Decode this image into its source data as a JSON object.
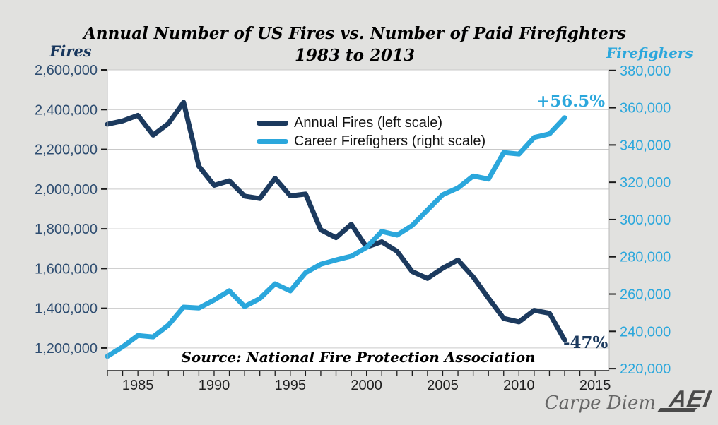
{
  "header": {
    "title_line1": "Annual Number of US Fires vs. Number of Paid Firefighters",
    "title_line2": "1983 to 2013"
  },
  "axes": {
    "left_label": "Fires",
    "right_label": "Firefighers"
  },
  "legend": {
    "items": [
      {
        "label": "Annual Fires (left scale)",
        "color": "#1c3a5e"
      },
      {
        "label": "Career Firefighers (right scale)",
        "color": "#2ba7dc"
      }
    ]
  },
  "annotations": {
    "firefighters_change": "+56.5%",
    "fires_change": "-47%"
  },
  "source": "Source: National Fire Protection Association",
  "branding": {
    "blog": "Carpe Diem",
    "org": "AEI"
  },
  "chart_data": {
    "type": "line",
    "title": "Annual Number of US Fires vs. Number of Paid Firefighters 1983 to 2013",
    "x": [
      1983,
      1984,
      1985,
      1986,
      1987,
      1988,
      1989,
      1990,
      1991,
      1992,
      1993,
      1994,
      1995,
      1996,
      1997,
      1998,
      1999,
      2000,
      2001,
      2002,
      2003,
      2004,
      2005,
      2006,
      2007,
      2008,
      2009,
      2010,
      2011,
      2012,
      2013
    ],
    "series": [
      {
        "name": "Annual Fires (left scale)",
        "axis": "left",
        "color": "#1c3a5e",
        "values": [
          2326500,
          2343000,
          2371000,
          2271500,
          2330000,
          2436500,
          2115000,
          2019000,
          2041500,
          1964500,
          1952500,
          2054500,
          1965500,
          1975000,
          1795000,
          1755500,
          1823000,
          1708000,
          1734500,
          1687500,
          1584500,
          1550500,
          1602000,
          1642500,
          1557500,
          1451500,
          1348500,
          1331500,
          1389500,
          1375000,
          1240000
        ]
      },
      {
        "name": "Career Firefighers (right scale)",
        "axis": "right",
        "color": "#2ba7dc",
        "values": [
          226600,
          231700,
          237750,
          237000,
          243350,
          253000,
          252500,
          256800,
          261750,
          253300,
          257600,
          265500,
          261700,
          271500,
          276000,
          278300,
          280300,
          285000,
          293600,
          291650,
          296850,
          305150,
          313300,
          316950,
          323350,
          321700,
          335950,
          335150,
          344050,
          345950,
          354600
        ]
      }
    ],
    "left_axis": {
      "label": "Fires",
      "range_at_plot_edges": [
        1086000,
        2600000
      ],
      "ticks": [
        {
          "v": 2600000,
          "label": "2,600,000"
        },
        {
          "v": 2400000,
          "label": "2,400,000"
        },
        {
          "v": 2200000,
          "label": "2,200,000"
        },
        {
          "v": 2000000,
          "label": "2,000,000"
        },
        {
          "v": 1800000,
          "label": "1,800,000"
        },
        {
          "v": 1600000,
          "label": "1,600,000"
        },
        {
          "v": 1400000,
          "label": "1,400,000"
        },
        {
          "v": 1200000,
          "label": "1,200,000"
        }
      ]
    },
    "right_axis": {
      "label": "Firefighers",
      "range_at_plot_edges": [
        218900,
        380300
      ],
      "ticks": [
        {
          "v": 380000,
          "label": "380,000"
        },
        {
          "v": 360000,
          "label": "360,000"
        },
        {
          "v": 340000,
          "label": "340,000"
        },
        {
          "v": 320000,
          "label": "320,000"
        },
        {
          "v": 300000,
          "label": "300,000"
        },
        {
          "v": 280000,
          "label": "280,000"
        },
        {
          "v": 260000,
          "label": "260,000"
        },
        {
          "v": 240000,
          "label": "240,000"
        },
        {
          "v": 220000,
          "label": "220,000"
        }
      ]
    },
    "x_axis": {
      "domain": [
        1983,
        2015.92
      ],
      "minor_tick_from": 1983,
      "minor_tick_to": 2015,
      "ticks": [
        {
          "v": 1985,
          "label": "1985"
        },
        {
          "v": 1990,
          "label": "1990"
        },
        {
          "v": 1995,
          "label": "1995"
        },
        {
          "v": 2000,
          "label": "2000"
        },
        {
          "v": 2005,
          "label": "2005"
        },
        {
          "v": 2010,
          "label": "2010"
        },
        {
          "v": 2015,
          "label": "2015"
        }
      ]
    },
    "grid": "horizontal gridlines at left-axis ticks",
    "legend_position": "inside-top-center"
  }
}
